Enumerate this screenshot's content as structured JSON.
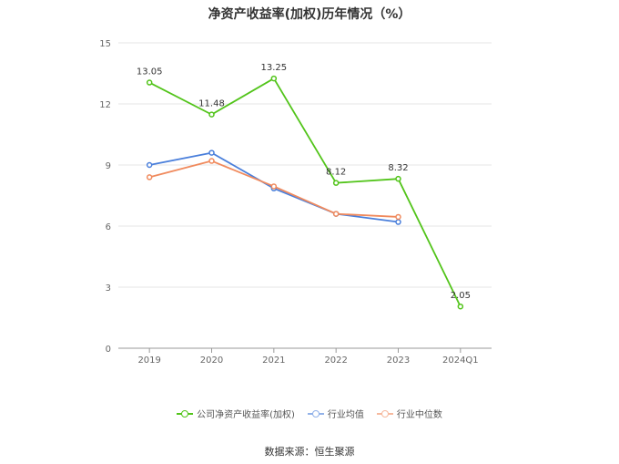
{
  "chart_data": {
    "type": "line",
    "title": "净资产收益率(加权)历年情况（%）",
    "categories": [
      "2019",
      "2020",
      "2021",
      "2022",
      "2023",
      "2024Q1"
    ],
    "ylim": [
      0,
      15
    ],
    "yticks": [
      0,
      3,
      6,
      9,
      12,
      15
    ],
    "grid": true,
    "legend_position": "bottom",
    "series": [
      {
        "name": "公司净资产收益率(加权)",
        "color": "#52c41a",
        "values": [
          13.05,
          11.48,
          13.25,
          8.12,
          8.32,
          2.05
        ],
        "labels": [
          "13.05",
          "11.48",
          "13.25",
          "8.12",
          "8.32",
          "2.05"
        ]
      },
      {
        "name": "行业均值",
        "color": "#4a7fdb",
        "values": [
          9.0,
          9.6,
          7.85,
          6.6,
          6.2,
          null
        ]
      },
      {
        "name": "行业中位数",
        "color": "#f08a5d",
        "values": [
          8.4,
          9.2,
          7.95,
          6.6,
          6.45,
          null
        ]
      }
    ]
  },
  "source": "数据来源：恒生聚源"
}
